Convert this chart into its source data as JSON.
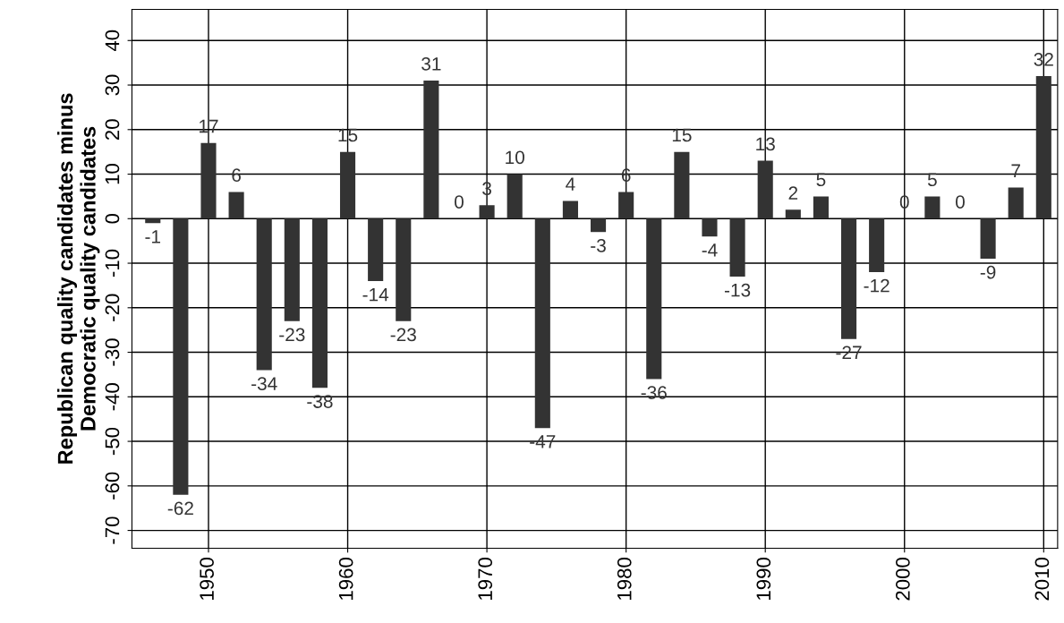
{
  "chart_data": {
    "type": "bar",
    "ylabel": "Republican quality candidates minus\nDemocratic quality candidates",
    "x": [
      1946,
      1948,
      1950,
      1952,
      1954,
      1956,
      1958,
      1960,
      1962,
      1964,
      1966,
      1968,
      1970,
      1972,
      1974,
      1976,
      1978,
      1980,
      1982,
      1984,
      1986,
      1988,
      1990,
      1992,
      1994,
      1996,
      1998,
      2000,
      2002,
      2004,
      2006,
      2008,
      2010
    ],
    "values": [
      -1,
      -62,
      17,
      6,
      -34,
      -23,
      -38,
      15,
      -14,
      -23,
      31,
      0,
      3,
      10,
      -47,
      4,
      -3,
      6,
      -36,
      15,
      -4,
      -13,
      13,
      2,
      5,
      -27,
      -12,
      0,
      5,
      0,
      -9,
      7,
      32
    ],
    "color": "#333333",
    "xlim": [
      1944.5,
      2011
    ],
    "xticks": [
      1950,
      1960,
      1970,
      1980,
      1990,
      2000,
      2010
    ],
    "ylim": [
      -74,
      47
    ],
    "yticks": [
      -70,
      -60,
      -50,
      -40,
      -30,
      -20,
      -10,
      0,
      10,
      20,
      30,
      40
    ],
    "grid": true,
    "data_labels": true
  }
}
